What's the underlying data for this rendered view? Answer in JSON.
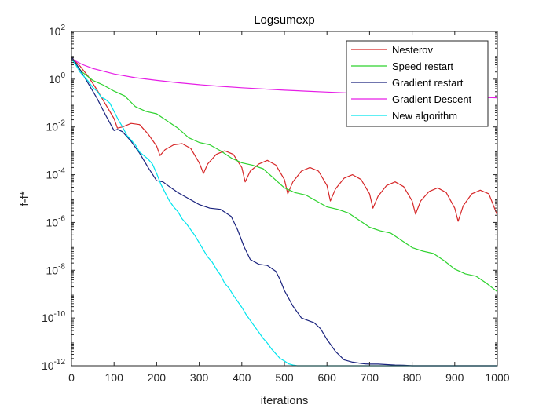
{
  "chart_data": {
    "type": "line",
    "title": "Logsumexp",
    "xlabel": "iterations",
    "ylabel": "f-f*",
    "xlim": [
      0,
      1000
    ],
    "ylim_log10": [
      -12,
      2
    ],
    "yscale": "log",
    "grid": false,
    "legend_position": "top-right",
    "x_ticks": [
      "0",
      "100",
      "200",
      "300",
      "400",
      "500",
      "600",
      "700",
      "800",
      "900",
      "1000"
    ],
    "y_tick_exponents": [
      "2",
      "0",
      "-2",
      "-4",
      "-6",
      "-8",
      "-10",
      "-12"
    ],
    "y_tick_base": "10",
    "series": [
      {
        "name": "Nesterov",
        "color": "#d62728",
        "x": [
          0,
          20,
          40,
          60,
          80,
          100,
          108,
          120,
          140,
          160,
          180,
          200,
          208,
          220,
          240,
          260,
          280,
          300,
          310,
          320,
          340,
          360,
          380,
          400,
          408,
          420,
          440,
          460,
          480,
          500,
          508,
          520,
          540,
          560,
          580,
          600,
          608,
          620,
          640,
          660,
          680,
          700,
          708,
          720,
          740,
          760,
          780,
          800,
          808,
          820,
          840,
          860,
          880,
          900,
          908,
          920,
          940,
          960,
          980,
          1000
        ],
        "y_log10": [
          0.9,
          0.55,
          0.1,
          -0.45,
          -1.05,
          -1.65,
          -2.05,
          -2.0,
          -1.85,
          -1.9,
          -2.3,
          -2.8,
          -3.2,
          -2.95,
          -2.75,
          -2.7,
          -2.9,
          -3.5,
          -3.95,
          -3.55,
          -3.15,
          -3.0,
          -3.15,
          -3.7,
          -4.3,
          -3.85,
          -3.55,
          -3.4,
          -3.6,
          -4.2,
          -4.8,
          -4.3,
          -3.85,
          -3.7,
          -3.85,
          -4.45,
          -5.1,
          -4.6,
          -4.15,
          -4.0,
          -4.2,
          -4.8,
          -5.4,
          -4.9,
          -4.45,
          -4.3,
          -4.5,
          -5.1,
          -5.65,
          -5.1,
          -4.7,
          -4.55,
          -4.75,
          -5.4,
          -5.95,
          -5.3,
          -4.8,
          -4.65,
          -4.8,
          -5.7
        ]
      },
      {
        "name": "Speed restart",
        "color": "#2ed22e",
        "x": [
          0,
          25,
          50,
          75,
          100,
          125,
          150,
          175,
          200,
          225,
          250,
          275,
          300,
          325,
          350,
          375,
          400,
          425,
          450,
          475,
          500,
          525,
          550,
          575,
          600,
          625,
          650,
          675,
          700,
          725,
          750,
          775,
          800,
          825,
          850,
          875,
          900,
          925,
          950,
          975,
          1000
        ],
        "y_log10": [
          0.85,
          0.3,
          -0.05,
          -0.25,
          -0.5,
          -0.7,
          -1.15,
          -1.35,
          -1.45,
          -1.75,
          -2.05,
          -2.45,
          -2.65,
          -2.75,
          -3.0,
          -3.3,
          -3.5,
          -3.6,
          -3.75,
          -4.15,
          -4.55,
          -4.75,
          -4.85,
          -5.1,
          -5.35,
          -5.45,
          -5.6,
          -5.9,
          -6.2,
          -6.35,
          -6.45,
          -6.75,
          -7.05,
          -7.2,
          -7.3,
          -7.6,
          -7.95,
          -8.15,
          -8.25,
          -8.55,
          -8.9
        ]
      },
      {
        "name": "Gradient restart",
        "color": "#1a237e",
        "x": [
          0,
          20,
          40,
          60,
          80,
          100,
          108,
          120,
          140,
          160,
          180,
          200,
          215,
          230,
          250,
          275,
          300,
          325,
          350,
          375,
          390,
          405,
          420,
          440,
          460,
          480,
          490,
          500,
          520,
          540,
          555,
          570,
          585,
          600,
          620,
          640,
          660,
          680,
          690,
          700,
          720,
          740,
          760,
          780,
          800,
          820,
          840,
          860,
          1000
        ],
        "y_log10": [
          0.95,
          0.4,
          -0.2,
          -0.8,
          -1.5,
          -2.15,
          -2.1,
          -2.2,
          -2.6,
          -3.1,
          -3.7,
          -4.25,
          -4.3,
          -4.5,
          -4.75,
          -5.0,
          -5.25,
          -5.4,
          -5.45,
          -5.75,
          -6.3,
          -7.0,
          -7.55,
          -7.75,
          -7.8,
          -8.05,
          -8.4,
          -8.85,
          -9.5,
          -10.0,
          -10.1,
          -10.2,
          -10.45,
          -10.9,
          -11.4,
          -11.75,
          -11.85,
          -11.9,
          -11.92,
          -11.93,
          -11.93,
          -11.95,
          -11.97,
          -11.98,
          -12.0,
          -12.0,
          -12.0,
          -12.0,
          -12.0
        ]
      },
      {
        "name": "Gradient Descent",
        "color": "#e61ee6",
        "x": [
          0,
          25,
          50,
          100,
          150,
          200,
          250,
          300,
          350,
          400,
          450,
          500,
          550,
          600,
          650,
          700,
          750,
          800,
          850,
          900,
          950,
          1000
        ],
        "y_log10": [
          0.85,
          0.62,
          0.45,
          0.22,
          0.06,
          -0.05,
          -0.15,
          -0.23,
          -0.3,
          -0.36,
          -0.41,
          -0.46,
          -0.5,
          -0.54,
          -0.58,
          -0.61,
          -0.64,
          -0.67,
          -0.7,
          -0.72,
          -0.75,
          -0.78
        ]
      },
      {
        "name": "New algorithm",
        "color": "#00e5ee",
        "x": [
          0,
          10,
          20,
          30,
          40,
          50,
          60,
          70,
          80,
          90,
          100,
          110,
          120,
          130,
          140,
          150,
          160,
          170,
          180,
          190,
          200,
          210,
          220,
          230,
          240,
          250,
          260,
          270,
          280,
          290,
          300,
          310,
          320,
          330,
          340,
          350,
          360,
          370,
          380,
          390,
          400,
          410,
          420,
          430,
          440,
          450,
          460,
          470,
          480,
          490,
          500,
          510,
          520,
          530,
          540,
          1000
        ],
        "y_log10": [
          0.85,
          0.6,
          0.3,
          0.1,
          -0.1,
          -0.35,
          -0.5,
          -0.75,
          -0.85,
          -1.0,
          -1.35,
          -1.7,
          -2.0,
          -2.35,
          -2.55,
          -2.75,
          -3.05,
          -3.2,
          -3.35,
          -3.55,
          -3.95,
          -4.4,
          -4.75,
          -5.1,
          -5.35,
          -5.55,
          -5.85,
          -6.05,
          -6.3,
          -6.55,
          -6.85,
          -7.15,
          -7.45,
          -7.65,
          -7.95,
          -8.2,
          -8.55,
          -8.75,
          -9.05,
          -9.3,
          -9.55,
          -9.85,
          -10.1,
          -10.35,
          -10.6,
          -10.85,
          -11.05,
          -11.3,
          -11.5,
          -11.7,
          -11.8,
          -11.92,
          -11.97,
          -12.0,
          -12.0,
          -12.0
        ]
      }
    ]
  }
}
